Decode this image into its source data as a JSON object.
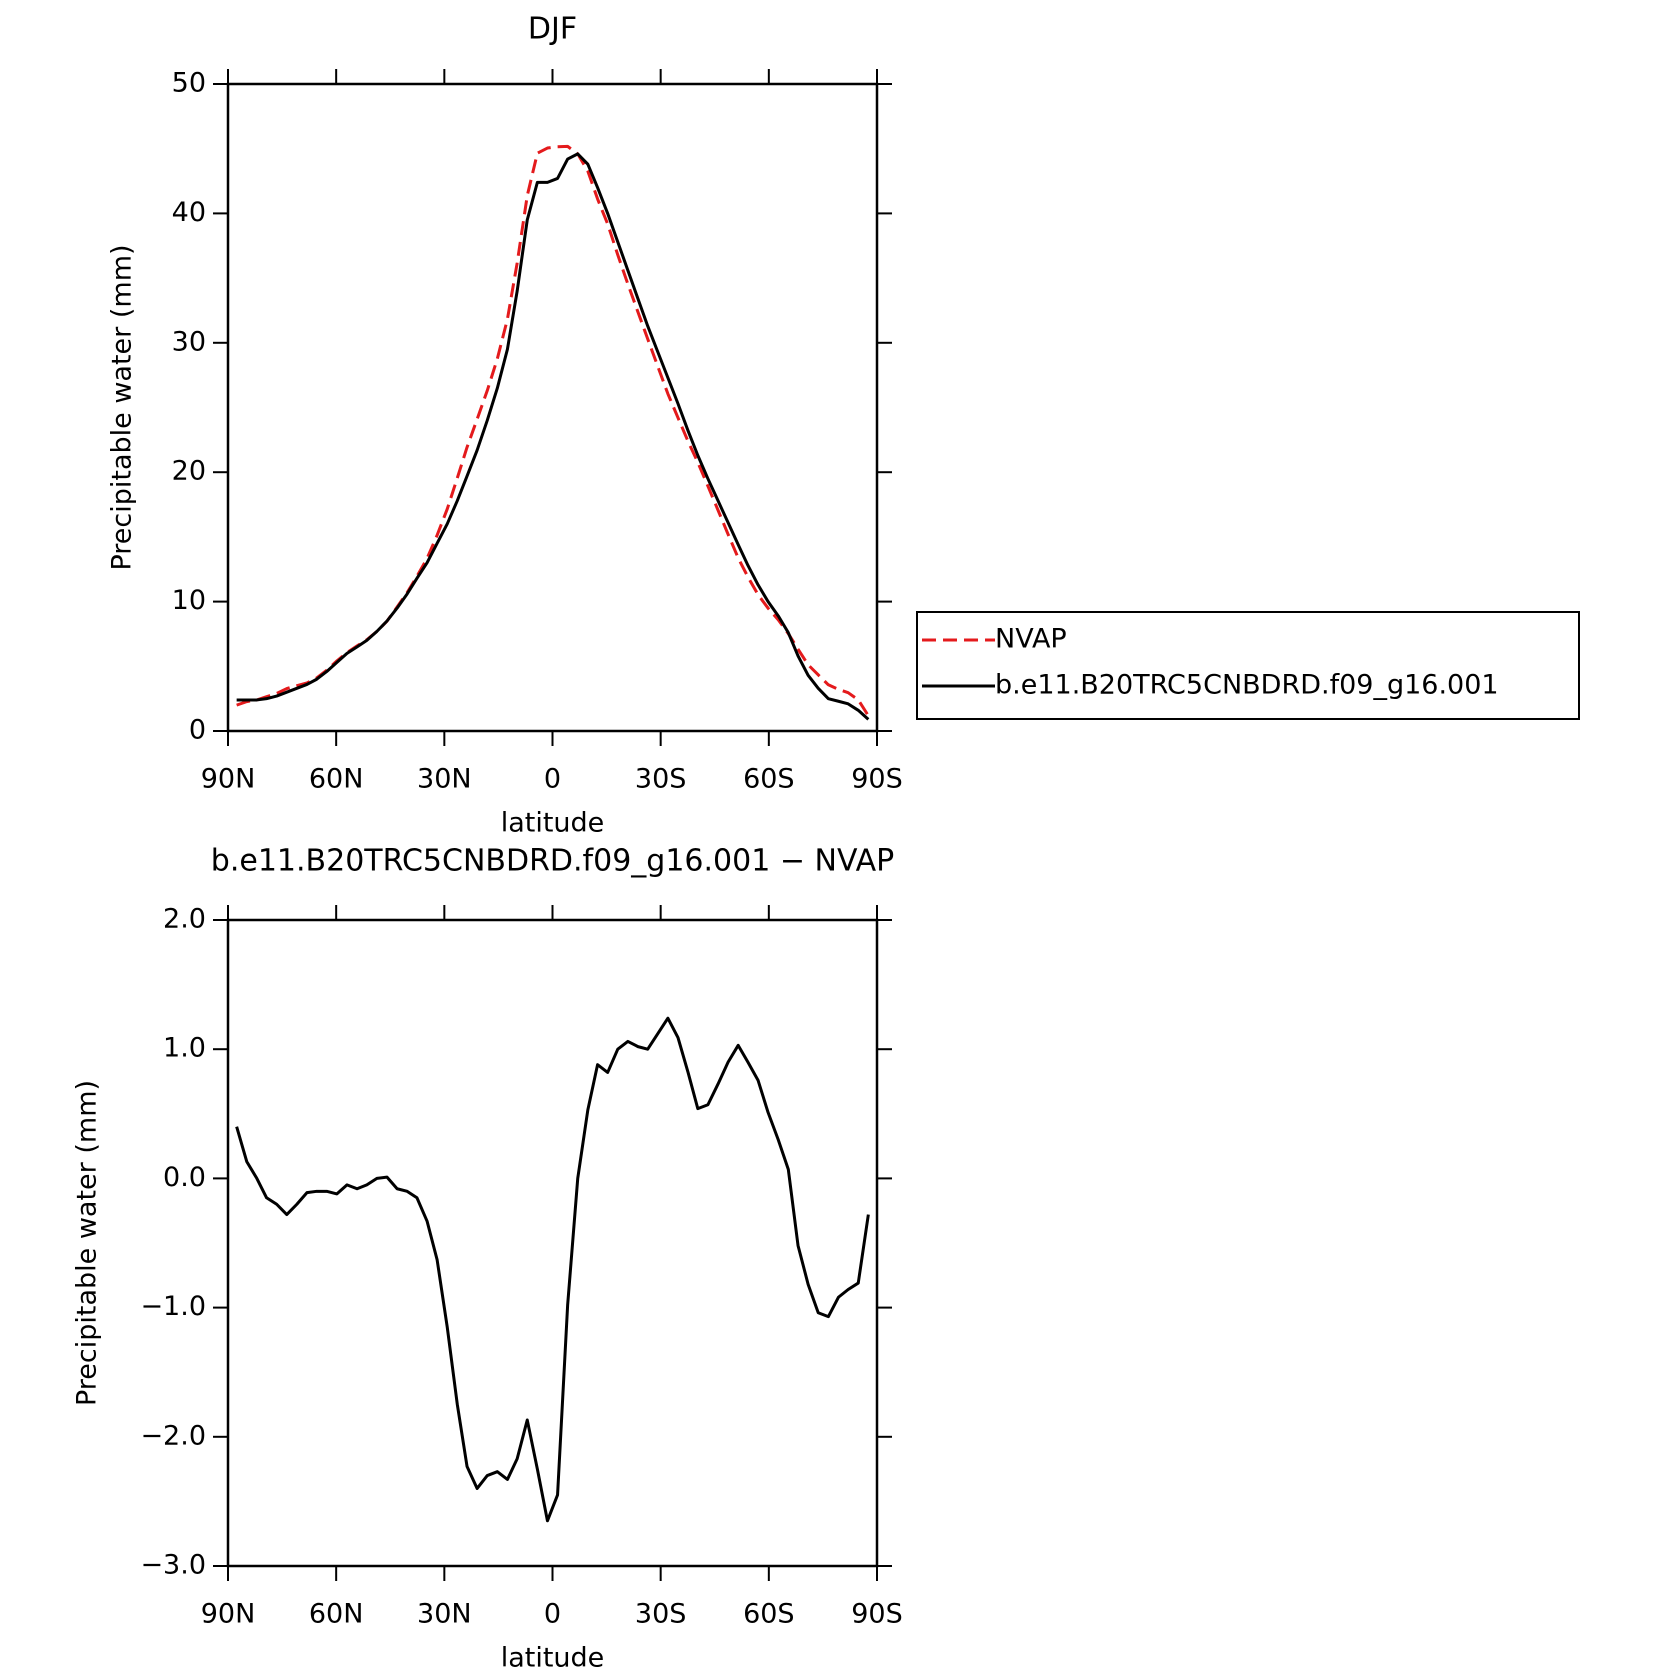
{
  "chart_data": [
    {
      "type": "line",
      "title": "DJF",
      "xlabel": "latitude",
      "ylabel": "Precipitable water (mm)",
      "xlim": [
        90,
        -90
      ],
      "ylim": [
        0,
        50
      ],
      "xticks": [
        {
          "value": 90,
          "label": "90N"
        },
        {
          "value": 60,
          "label": "60N"
        },
        {
          "value": 30,
          "label": "30N"
        },
        0,
        {
          "value": -30,
          "label": "30S"
        },
        {
          "value": -60,
          "label": "60S"
        },
        {
          "value": -90,
          "label": "90S"
        }
      ],
      "yticks": [
        0,
        10,
        20,
        30,
        40,
        50
      ],
      "grid": false,
      "legend": "right",
      "x": [
        87.6,
        84.8,
        82.0,
        79.3,
        76.5,
        73.7,
        70.9,
        68.1,
        65.4,
        62.6,
        59.8,
        57.0,
        54.2,
        51.5,
        48.7,
        45.9,
        43.1,
        40.3,
        37.6,
        34.8,
        32.0,
        29.2,
        26.4,
        23.7,
        20.9,
        18.1,
        15.3,
        12.5,
        9.8,
        7.0,
        4.2,
        1.4,
        -1.4,
        -4.2,
        -7.0,
        -9.8,
        -12.5,
        -15.3,
        -18.1,
        -20.9,
        -23.7,
        -26.4,
        -29.2,
        -32.0,
        -34.8,
        -37.6,
        -40.3,
        -43.1,
        -45.9,
        -48.7,
        -51.5,
        -54.2,
        -57.0,
        -59.8,
        -62.6,
        -65.4,
        -68.1,
        -70.9,
        -73.7,
        -76.5,
        -79.3,
        -82.0,
        -84.8,
        -87.6
      ],
      "series": [
        {
          "name": "NVAP",
          "color": "#e41a1c",
          "linestyle": "dashed",
          "values": [
            2.0,
            2.27,
            2.4,
            2.65,
            2.9,
            3.28,
            3.5,
            3.71,
            4.1,
            4.7,
            5.42,
            6.05,
            6.58,
            7.05,
            7.7,
            8.49,
            9.58,
            10.7,
            11.95,
            13.33,
            15.13,
            17.15,
            19.55,
            21.93,
            24.1,
            26.3,
            28.77,
            31.83,
            36.17,
            41.37,
            44.65,
            45.05,
            45.15,
            45.18,
            44.6,
            43.27,
            41.12,
            39.18,
            36.8,
            34.54,
            32.38,
            30.3,
            28.18,
            26.06,
            24.21,
            22.38,
            20.76,
            18.93,
            17.07,
            15.2,
            13.37,
            11.9,
            10.54,
            9.49,
            8.6,
            7.53,
            6.32,
            5.12,
            4.34,
            3.57,
            3.22,
            2.96,
            2.41,
            1.18
          ]
        },
        {
          "name": "b.e11.B20TRC5CNBDRD.f09_g16.001",
          "color": "#000000",
          "linestyle": "solid",
          "values": [
            2.4,
            2.4,
            2.4,
            2.5,
            2.7,
            3.0,
            3.3,
            3.6,
            4.0,
            4.6,
            5.3,
            6.0,
            6.5,
            7.0,
            7.7,
            8.5,
            9.5,
            10.6,
            11.8,
            13.0,
            14.5,
            16.0,
            17.8,
            19.7,
            21.7,
            24.0,
            26.5,
            29.5,
            34.0,
            39.5,
            42.4,
            42.4,
            42.7,
            44.2,
            44.6,
            43.8,
            42.0,
            40.0,
            37.8,
            35.6,
            33.4,
            31.3,
            29.3,
            27.3,
            25.3,
            23.2,
            21.3,
            19.5,
            17.8,
            16.1,
            14.4,
            12.8,
            11.3,
            10.0,
            8.9,
            7.6,
            5.8,
            4.3,
            3.3,
            2.5,
            2.3,
            2.1,
            1.6,
            0.9
          ]
        }
      ]
    },
    {
      "type": "line",
      "title": "b.e11.B20TRC5CNBDRD.f09_g16.001 − NVAP",
      "xlabel": "latitude",
      "ylabel": "Precipitable water (mm)",
      "xlim": [
        90,
        -90
      ],
      "ylim": [
        -3,
        2
      ],
      "xticks": [
        {
          "value": 90,
          "label": "90N"
        },
        {
          "value": 60,
          "label": "60N"
        },
        {
          "value": 30,
          "label": "30N"
        },
        0,
        {
          "value": -30,
          "label": "30S"
        },
        {
          "value": -60,
          "label": "60S"
        },
        {
          "value": -90,
          "label": "90S"
        }
      ],
      "yticks": [
        {
          "value": -3,
          "label": "−3.0"
        },
        {
          "value": -2,
          "label": "−2.0"
        },
        {
          "value": -1,
          "label": "−1.0"
        },
        {
          "value": 0,
          "label": "0.0"
        },
        {
          "value": 1,
          "label": "1.0"
        },
        {
          "value": 2,
          "label": "2.0"
        }
      ],
      "grid": false,
      "x": [
        87.6,
        84.8,
        82.0,
        79.3,
        76.5,
        73.7,
        70.9,
        68.1,
        65.4,
        62.6,
        59.8,
        57.0,
        54.2,
        51.5,
        48.7,
        45.9,
        43.1,
        40.3,
        37.6,
        34.8,
        32.0,
        29.2,
        26.4,
        23.7,
        20.9,
        18.1,
        15.3,
        12.5,
        9.8,
        7.0,
        4.2,
        1.4,
        -1.4,
        -4.2,
        -7.0,
        -9.8,
        -12.5,
        -15.3,
        -18.1,
        -20.9,
        -23.7,
        -26.4,
        -29.2,
        -32.0,
        -34.8,
        -37.6,
        -40.3,
        -43.1,
        -45.9,
        -48.7,
        -51.5,
        -54.2,
        -57.0,
        -59.8,
        -62.6,
        -65.4,
        -68.1,
        -70.9,
        -73.7,
        -76.5,
        -79.3,
        -82.0,
        -84.8,
        -87.6
      ],
      "series": [
        {
          "color": "#000000",
          "linestyle": "solid",
          "values": [
            0.4,
            0.13,
            0.0,
            -0.15,
            -0.2,
            -0.28,
            -0.2,
            -0.11,
            -0.1,
            -0.1,
            -0.12,
            -0.05,
            -0.08,
            -0.05,
            0.0,
            0.01,
            -0.08,
            -0.1,
            -0.15,
            -0.33,
            -0.63,
            -1.15,
            -1.75,
            -2.23,
            -2.4,
            -2.3,
            -2.27,
            -2.33,
            -2.17,
            -1.87,
            -2.25,
            -2.65,
            -2.45,
            -0.98,
            0.0,
            0.53,
            0.88,
            0.82,
            1.0,
            1.06,
            1.02,
            1.0,
            1.12,
            1.24,
            1.09,
            0.82,
            0.54,
            0.57,
            0.73,
            0.9,
            1.03,
            0.9,
            0.76,
            0.51,
            0.3,
            0.07,
            -0.52,
            -0.82,
            -1.04,
            -1.07,
            -0.92,
            -0.86,
            -0.81,
            -0.28
          ]
        }
      ]
    }
  ]
}
